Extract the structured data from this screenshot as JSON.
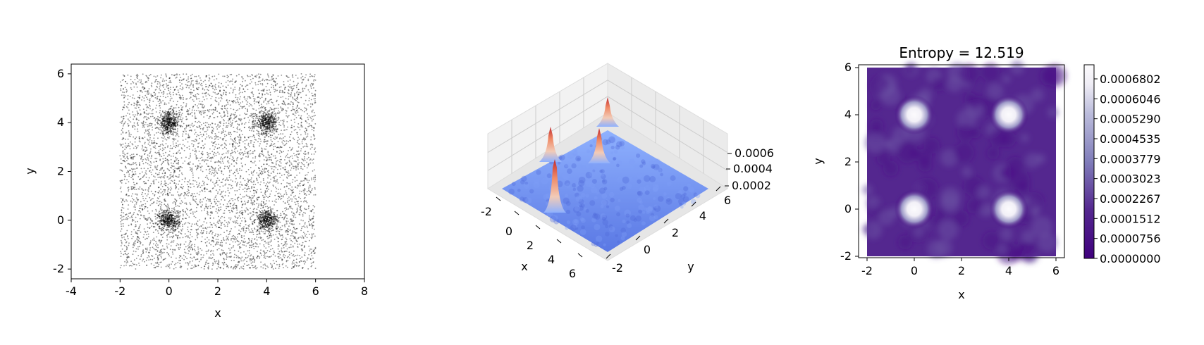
{
  "chart_data": [
    {
      "type": "scatter",
      "title": "",
      "xlabel": "x",
      "ylabel": "y",
      "xlim": [
        -4,
        8
      ],
      "ylim": [
        -2.4,
        6.4
      ],
      "xticks": [
        "-4",
        "-2",
        "0",
        "2",
        "4",
        "6",
        "8"
      ],
      "yticks": [
        "-2",
        "0",
        "2",
        "4",
        "6"
      ],
      "uniform_region": {
        "x": [
          -2,
          6
        ],
        "y": [
          -2,
          6
        ]
      },
      "clusters": [
        {
          "x": 0,
          "y": 4
        },
        {
          "x": 4,
          "y": 4
        },
        {
          "x": 0,
          "y": 0
        },
        {
          "x": 4,
          "y": 0
        }
      ],
      "point_color": "#000000",
      "grid": false
    },
    {
      "type": "surface",
      "title": "",
      "xlabel": "x",
      "ylabel": "y",
      "xticks": [
        "-2",
        "0",
        "2",
        "4",
        "6"
      ],
      "yticks": [
        "-2",
        "0",
        "2",
        "4",
        "6"
      ],
      "zticks": [
        "0.0002",
        "0.0004",
        "0.0006"
      ],
      "peaks": [
        {
          "x": 0,
          "y": 4
        },
        {
          "x": 4,
          "y": 4
        },
        {
          "x": 0,
          "y": 0
        },
        {
          "x": 4,
          "y": 0
        }
      ],
      "colormap": "coolwarm",
      "grid": true
    },
    {
      "type": "heatmap",
      "title": "Entropy = 12.519",
      "xlabel": "x",
      "ylabel": "y",
      "xticks": [
        "-2",
        "0",
        "2",
        "4",
        "6"
      ],
      "yticks": [
        "-2",
        "0",
        "2",
        "4",
        "6"
      ],
      "xlim": [
        -2,
        6
      ],
      "ylim": [
        -2,
        6
      ],
      "peaks": [
        {
          "x": 0,
          "y": 4
        },
        {
          "x": 4,
          "y": 4
        },
        {
          "x": 0,
          "y": 0
        },
        {
          "x": 4,
          "y": 0
        }
      ],
      "colormap": "Purples_r",
      "colorbar_ticks": [
        "0.0000000",
        "0.0000756",
        "0.0001512",
        "0.0002267",
        "0.0003023",
        "0.0003779",
        "0.0004535",
        "0.0005290",
        "0.0006046",
        "0.0006802"
      ]
    }
  ]
}
